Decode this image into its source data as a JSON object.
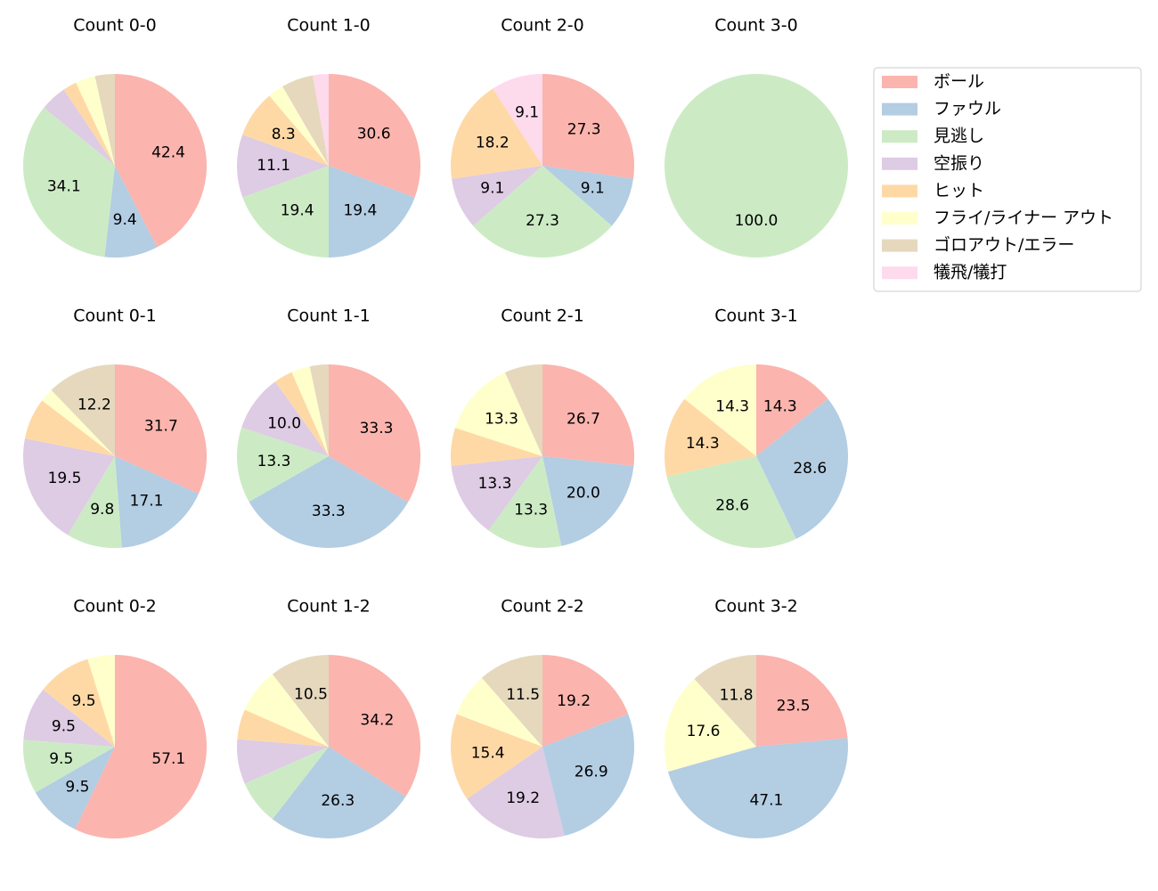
{
  "legend": {
    "labels": [
      "ボール",
      "ファウル",
      "見逃し",
      "空振り",
      "ヒット",
      "フライ/ライナー アウト",
      "ゴロアウト/エラー",
      "犠飛/犠打"
    ],
    "colors": [
      "#fbb4ae",
      "#b3cde3",
      "#ccebc5",
      "#decbe4",
      "#fed9a6",
      "#ffffcc",
      "#e5d8bd",
      "#fddaec"
    ]
  },
  "chart_data": [
    {
      "type": "pie",
      "title": "Count 0-0",
      "values": [
        42.4,
        9.4,
        34.1,
        4.7,
        2.4,
        3.5,
        3.5,
        0
      ],
      "value_labels": [
        "42.4",
        "9.4",
        "34.1",
        null,
        null,
        null,
        null,
        null
      ]
    },
    {
      "type": "pie",
      "title": "Count 1-0",
      "values": [
        30.6,
        19.4,
        19.4,
        11.1,
        8.3,
        2.8,
        5.6,
        2.8
      ],
      "value_labels": [
        "30.6",
        "19.4",
        "19.4",
        "11.1",
        "8.3",
        null,
        null,
        null
      ]
    },
    {
      "type": "pie",
      "title": "Count 2-0",
      "values": [
        27.3,
        9.1,
        27.3,
        9.1,
        18.2,
        0,
        0,
        9.1
      ],
      "value_labels": [
        "27.3",
        "9.1",
        "27.3",
        "9.1",
        "18.2",
        null,
        null,
        "9.1"
      ]
    },
    {
      "type": "pie",
      "title": "Count 3-0",
      "values": [
        0,
        0,
        100.0,
        0,
        0,
        0,
        0,
        0
      ],
      "value_labels": [
        null,
        null,
        "100.0",
        null,
        null,
        null,
        null,
        null
      ]
    },
    {
      "type": "pie",
      "title": "Count 0-1",
      "values": [
        31.7,
        17.1,
        9.8,
        19.5,
        7.3,
        2.4,
        12.2,
        0
      ],
      "value_labels": [
        "31.7",
        "17.1",
        "9.8",
        "19.5",
        null,
        null,
        "12.2",
        null
      ]
    },
    {
      "type": "pie",
      "title": "Count 1-1",
      "values": [
        33.3,
        33.3,
        13.3,
        10.0,
        3.3,
        3.3,
        3.3,
        0
      ],
      "value_labels": [
        "33.3",
        "33.3",
        "13.3",
        "10.0",
        null,
        null,
        null,
        null
      ]
    },
    {
      "type": "pie",
      "title": "Count 2-1",
      "values": [
        26.7,
        20.0,
        13.3,
        13.3,
        6.7,
        13.3,
        6.7,
        0
      ],
      "value_labels": [
        "26.7",
        "20.0",
        "13.3",
        "13.3",
        null,
        "13.3",
        null,
        null
      ]
    },
    {
      "type": "pie",
      "title": "Count 3-1",
      "values": [
        14.3,
        28.6,
        28.6,
        0,
        14.3,
        14.3,
        0,
        0
      ],
      "value_labels": [
        "14.3",
        "28.6",
        "28.6",
        null,
        "14.3",
        "14.3",
        null,
        null
      ]
    },
    {
      "type": "pie",
      "title": "Count 0-2",
      "values": [
        57.1,
        9.5,
        9.5,
        9.5,
        9.5,
        4.8,
        0,
        0
      ],
      "value_labels": [
        "57.1",
        "9.5",
        "9.5",
        "9.5",
        "9.5",
        null,
        null,
        null
      ]
    },
    {
      "type": "pie",
      "title": "Count 1-2",
      "values": [
        34.2,
        26.3,
        7.9,
        7.9,
        5.3,
        7.9,
        10.5,
        0
      ],
      "value_labels": [
        "34.2",
        "26.3",
        null,
        null,
        null,
        null,
        "10.5",
        null
      ]
    },
    {
      "type": "pie",
      "title": "Count 2-2",
      "values": [
        19.2,
        26.9,
        0,
        19.2,
        15.4,
        7.7,
        11.5,
        0
      ],
      "value_labels": [
        "19.2",
        "26.9",
        null,
        "19.2",
        "15.4",
        null,
        "11.5",
        null
      ]
    },
    {
      "type": "pie",
      "title": "Count 3-2",
      "values": [
        23.5,
        47.1,
        0,
        0,
        0,
        17.6,
        11.8,
        0
      ],
      "value_labels": [
        "23.5",
        "47.1",
        null,
        null,
        null,
        "17.6",
        "11.8",
        null
      ]
    }
  ]
}
